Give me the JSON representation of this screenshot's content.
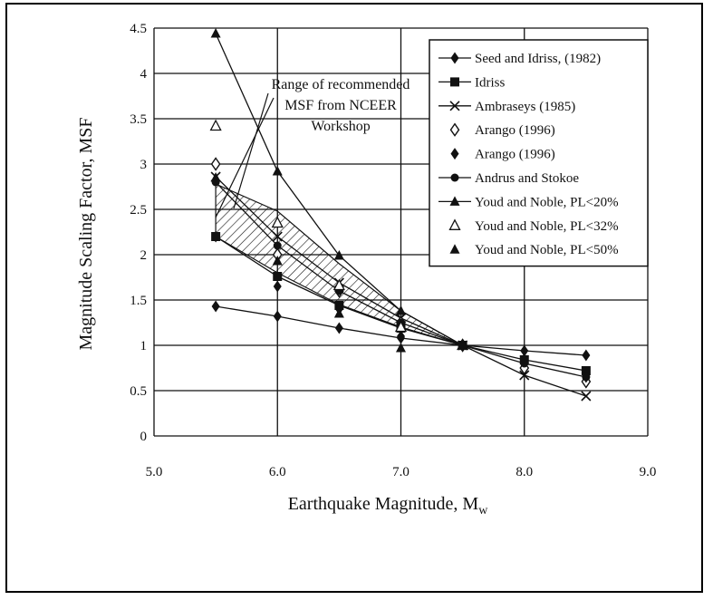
{
  "chart_data": {
    "type": "line",
    "title": "",
    "xlabel": "Earthquake Magnitude, M",
    "xlabel_sub": "w",
    "ylabel": "Magnitude Scaling Factor, MSF",
    "xlim": [
      5.0,
      9.0
    ],
    "ylim": [
      0,
      4.5
    ],
    "x_ticks": [
      "5.0",
      "6.0",
      "7.0",
      "8.0",
      "9.0"
    ],
    "y_ticks": [
      "0",
      "0.5",
      "1",
      "1.5",
      "2",
      "2.5",
      "3",
      "3.5",
      "4",
      "4.5"
    ],
    "grid": true,
    "legend_position": "top-right",
    "annotation": [
      "Range of recommended",
      "MSF from NCEER",
      "Workshop"
    ],
    "shaded_band": {
      "upper": [
        {
          "x": 5.5,
          "y": 2.78
        },
        {
          "x": 6.0,
          "y": 2.48
        },
        {
          "x": 6.5,
          "y": 1.9
        },
        {
          "x": 7.0,
          "y": 1.38
        },
        {
          "x": 7.5,
          "y": 1.0
        }
      ],
      "lower": [
        {
          "x": 5.5,
          "y": 2.2
        },
        {
          "x": 6.0,
          "y": 1.8
        },
        {
          "x": 6.5,
          "y": 1.45
        },
        {
          "x": 7.0,
          "y": 1.2
        },
        {
          "x": 7.5,
          "y": 1.0
        }
      ]
    },
    "series": [
      {
        "name": "Seed and Idriss, (1982)",
        "marker": "diamond-filled",
        "line": true,
        "points": [
          {
            "x": 5.5,
            "y": 1.43
          },
          {
            "x": 6.0,
            "y": 1.32
          },
          {
            "x": 6.5,
            "y": 1.19
          },
          {
            "x": 7.0,
            "y": 1.08
          },
          {
            "x": 7.5,
            "y": 1.0
          },
          {
            "x": 8.0,
            "y": 0.94
          },
          {
            "x": 8.5,
            "y": 0.89
          }
        ]
      },
      {
        "name": "Idriss",
        "marker": "square",
        "line": true,
        "points": [
          {
            "x": 5.5,
            "y": 2.2
          },
          {
            "x": 6.0,
            "y": 1.76
          },
          {
            "x": 6.5,
            "y": 1.44
          },
          {
            "x": 7.0,
            "y": 1.19
          },
          {
            "x": 7.5,
            "y": 1.0
          },
          {
            "x": 8.0,
            "y": 0.84
          },
          {
            "x": 8.5,
            "y": 0.72
          }
        ]
      },
      {
        "name": "Ambraseys (1985)",
        "marker": "x",
        "line": true,
        "points": [
          {
            "x": 5.5,
            "y": 2.86
          },
          {
            "x": 6.0,
            "y": 2.2
          },
          {
            "x": 6.5,
            "y": 1.69
          },
          {
            "x": 7.0,
            "y": 1.3
          },
          {
            "x": 7.5,
            "y": 1.0
          },
          {
            "x": 8.0,
            "y": 0.67
          },
          {
            "x": 8.5,
            "y": 0.44
          }
        ]
      },
      {
        "name": "Arango (1996)",
        "marker": "diamond-open",
        "line": false,
        "points": [
          {
            "x": 5.5,
            "y": 3.0
          },
          {
            "x": 6.0,
            "y": 2.0
          },
          {
            "x": 6.5,
            "y": 1.6
          },
          {
            "x": 7.0,
            "y": 1.25
          },
          {
            "x": 7.5,
            "y": 1.0
          },
          {
            "x": 8.0,
            "y": 0.75
          },
          {
            "x": 8.5,
            "y": 0.6
          }
        ]
      },
      {
        "name": "Arango (1996)",
        "marker": "diamond-filled",
        "line": false,
        "points": [
          {
            "x": 5.5,
            "y": 2.2
          },
          {
            "x": 6.0,
            "y": 1.65
          },
          {
            "x": 6.5,
            "y": 1.4
          },
          {
            "x": 7.0,
            "y": 1.1
          },
          {
            "x": 7.5,
            "y": 1.0
          },
          {
            "x": 8.0,
            "y": 0.85
          },
          {
            "x": 8.5,
            "y": 0.65
          }
        ]
      },
      {
        "name": "Andrus and Stokoe",
        "marker": "circle-filled",
        "line": true,
        "points": [
          {
            "x": 5.5,
            "y": 2.8
          },
          {
            "x": 6.0,
            "y": 2.1
          },
          {
            "x": 6.5,
            "y": 1.6
          },
          {
            "x": 7.0,
            "y": 1.25
          },
          {
            "x": 7.5,
            "y": 1.0
          },
          {
            "x": 8.0,
            "y": 0.8
          },
          {
            "x": 8.5,
            "y": 0.65
          }
        ]
      },
      {
        "name": "Youd and Noble, PL<20%",
        "marker": "triangle-filled",
        "line": true,
        "points": [
          {
            "x": 5.5,
            "y": 4.44
          },
          {
            "x": 6.0,
            "y": 2.92
          },
          {
            "x": 6.5,
            "y": 1.99
          },
          {
            "x": 7.0,
            "y": 1.38
          },
          {
            "x": 7.5,
            "y": 1.0
          }
        ]
      },
      {
        "name": "Youd and Noble, PL<32%",
        "marker": "triangle-open",
        "line": false,
        "points": [
          {
            "x": 5.5,
            "y": 3.42
          },
          {
            "x": 6.0,
            "y": 2.35
          },
          {
            "x": 6.5,
            "y": 1.66
          },
          {
            "x": 7.0,
            "y": 1.2
          },
          {
            "x": 7.5,
            "y": 1.0
          }
        ]
      },
      {
        "name": "Youd and Noble, PL<50%",
        "marker": "triangle-filled",
        "line": false,
        "points": [
          {
            "x": 5.5,
            "y": 2.85
          },
          {
            "x": 6.0,
            "y": 1.93
          },
          {
            "x": 6.5,
            "y": 1.35
          },
          {
            "x": 7.0,
            "y": 0.97
          },
          {
            "x": 7.5,
            "y": 1.0
          }
        ]
      }
    ]
  }
}
